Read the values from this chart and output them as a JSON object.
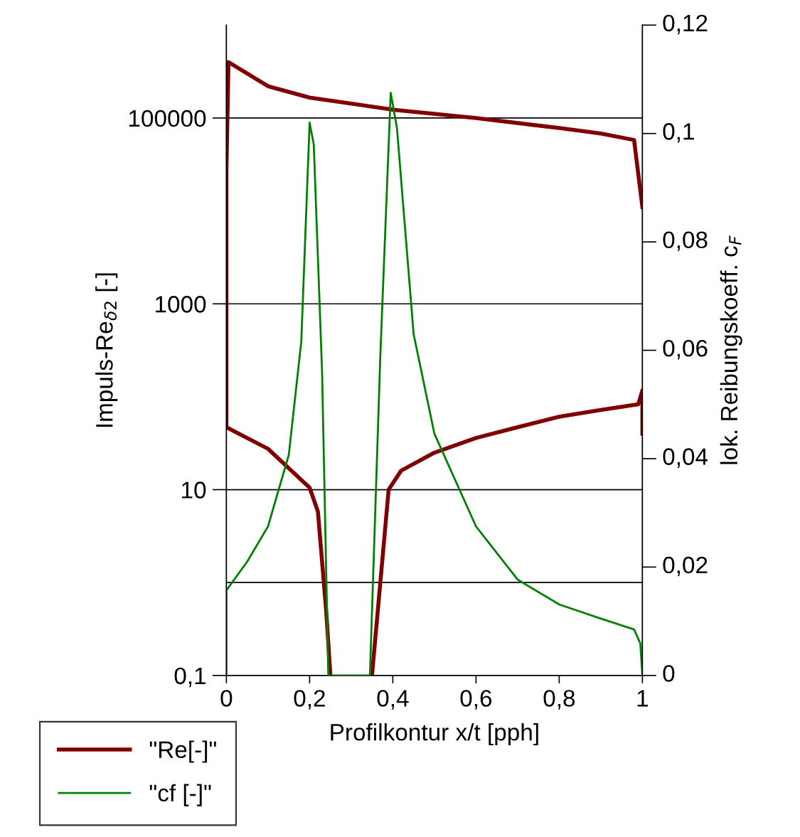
{
  "chart_data": {
    "type": "line",
    "xlabel": "Profilkontur x/t [pph]",
    "ylabel": "Impuls-Re$_{δ2}$ [-]",
    "y2label": "lok. Reibungskoeff. c$_{F}$",
    "xlim": [
      0,
      1
    ],
    "xticks": [
      0,
      {
        "value": 0.2,
        "label": "0,2"
      },
      {
        "value": 0.4,
        "label": "0,4"
      },
      {
        "value": 0.6,
        "label": "0,6"
      },
      {
        "value": 0.8,
        "label": "0,8"
      },
      1
    ],
    "log": "y",
    "ylim": [
      0.1,
      1000000
    ],
    "yticks": [
      {
        "value": 0.1,
        "label": "0,1"
      },
      10,
      1000,
      100000
    ],
    "y2lim": [
      0,
      0.12
    ],
    "y2ticks": [
      0,
      {
        "value": 0.02,
        "label": "0,02"
      },
      {
        "value": 0.04,
        "label": "0,04"
      },
      {
        "value": 0.06,
        "label": "0,06"
      },
      {
        "value": 0.08,
        "label": "0,08"
      },
      {
        "value": 0.1,
        "label": "0,1"
      },
      {
        "value": 0.12,
        "label": "0,12"
      }
    ],
    "ref_lines": [
      {
        "axis": "y",
        "value": 1,
        "color": "#000000",
        "line_style": "solid"
      }
    ],
    "grid": "y",
    "legend": "bottom left",
    "line_style": "solid",
    "marker": "none",
    "series": [
      {
        "name": "\"Re[-]\"",
        "color": "#800000",
        "x": [
          1,
          0.98,
          0.9,
          0.8,
          0.6,
          0.4,
          0.2,
          0.1,
          0.005,
          0,
          0,
          0.1,
          0.2,
          0.22,
          0.24,
          0.25,
          0.3,
          0.35,
          0.37,
          0.39,
          0.42,
          0.5,
          0.6,
          0.7,
          0.8,
          0.9,
          0.99,
          1,
          1
        ],
        "values": [
          11000,
          58000,
          68000,
          78000,
          100000,
          123000,
          166000,
          220000,
          400000,
          26000,
          47,
          27.5,
          10.5,
          5.8,
          0.49,
          0.1,
          null,
          0.1,
          1,
          10,
          16,
          25,
          36,
          47,
          61,
          72,
          83,
          117,
          40
        ]
      },
      {
        "name": "\"cf [-]\"",
        "color": "#008000",
        "axis": "y2",
        "x": [
          0,
          0,
          0.05,
          0.1,
          0.15,
          0.18,
          0.2,
          0.21,
          0.23,
          0.245,
          0.345,
          0.37,
          0.395,
          0.41,
          0.45,
          0.5,
          0.6,
          0.7,
          0.8,
          0.9,
          0.98,
          0.995,
          1
        ],
        "values": [
          0,
          0.0157,
          0.021,
          0.0275,
          0.0407,
          0.0616,
          0.102,
          0.098,
          0.056,
          0,
          0,
          0.059,
          0.1075,
          0.101,
          0.063,
          0.0446,
          0.0275,
          0.0177,
          0.0131,
          0.0105,
          0.0085,
          0.0059,
          0
        ]
      }
    ]
  }
}
